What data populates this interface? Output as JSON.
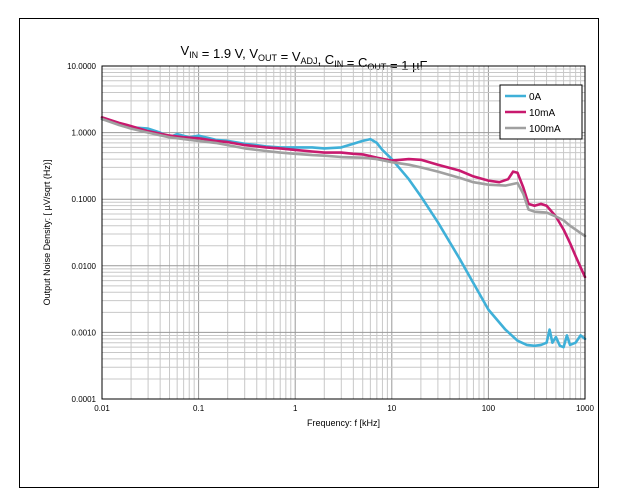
{
  "chart_data": {
    "type": "line",
    "title": "VIN = 1.9 V, VOUT = VADJ, CIN = COUT = 1 µF",
    "title_parts": [
      {
        "text": "V",
        "sub": "IN"
      },
      {
        "text": " = 1.9 V, V",
        "sub": "OUT"
      },
      {
        "text": " = V",
        "sub": "ADJ"
      },
      {
        "text": ", C",
        "sub": "IN"
      },
      {
        "text": " = C",
        "sub": "OUT"
      },
      {
        "text": " = 1 µF",
        "sub": ""
      }
    ],
    "xlabel": "Frequency: f [kHz]",
    "ylabel": "Output Noise Density: [ µV/sqrt (Hz)]",
    "x_scale": "log",
    "y_scale": "log",
    "xlim": [
      0.01,
      1000
    ],
    "ylim": [
      0.0001,
      10
    ],
    "x_ticks": [
      {
        "value": 0.01,
        "label": "0.01"
      },
      {
        "value": 0.1,
        "label": "0.1"
      },
      {
        "value": 1,
        "label": "1"
      },
      {
        "value": 10,
        "label": "10"
      },
      {
        "value": 100,
        "label": "100"
      },
      {
        "value": 1000,
        "label": "1000"
      }
    ],
    "y_ticks": [
      {
        "value": 0.0001,
        "label": "0.0001"
      },
      {
        "value": 0.001,
        "label": "0.0010"
      },
      {
        "value": 0.01,
        "label": "0.0100"
      },
      {
        "value": 0.1,
        "label": "0.1000"
      },
      {
        "value": 1,
        "label": "1.0000"
      },
      {
        "value": 10,
        "label": "10.0000"
      }
    ],
    "grid": true,
    "legend_position": "top-right",
    "series": [
      {
        "name": "0A",
        "color": "#3fb0d8",
        "points": [
          [
            0.01,
            1.6
          ],
          [
            0.015,
            1.35
          ],
          [
            0.02,
            1.2
          ],
          [
            0.03,
            1.15
          ],
          [
            0.04,
            1.0
          ],
          [
            0.05,
            0.85
          ],
          [
            0.06,
            0.95
          ],
          [
            0.08,
            0.85
          ],
          [
            0.1,
            0.9
          ],
          [
            0.15,
            0.78
          ],
          [
            0.2,
            0.75
          ],
          [
            0.3,
            0.68
          ],
          [
            0.4,
            0.65
          ],
          [
            0.5,
            0.62
          ],
          [
            0.7,
            0.6
          ],
          [
            1,
            0.6
          ],
          [
            1.5,
            0.6
          ],
          [
            2,
            0.58
          ],
          [
            3,
            0.6
          ],
          [
            4,
            0.68
          ],
          [
            5,
            0.75
          ],
          [
            6,
            0.8
          ],
          [
            7,
            0.7
          ],
          [
            8,
            0.55
          ],
          [
            10,
            0.4
          ],
          [
            15,
            0.2
          ],
          [
            20,
            0.11
          ],
          [
            30,
            0.045
          ],
          [
            50,
            0.013
          ],
          [
            70,
            0.0055
          ],
          [
            100,
            0.0022
          ],
          [
            150,
            0.0011
          ],
          [
            200,
            0.00075
          ],
          [
            250,
            0.00065
          ],
          [
            300,
            0.00063
          ],
          [
            350,
            0.00065
          ],
          [
            400,
            0.0007
          ],
          [
            430,
            0.0011
          ],
          [
            460,
            0.0007
          ],
          [
            500,
            0.00085
          ],
          [
            550,
            0.00063
          ],
          [
            600,
            0.0006
          ],
          [
            650,
            0.0009
          ],
          [
            700,
            0.00065
          ],
          [
            800,
            0.0007
          ],
          [
            900,
            0.0009
          ],
          [
            1000,
            0.0008
          ]
        ]
      },
      {
        "name": "10mA",
        "color": "#c8196e",
        "points": [
          [
            0.01,
            1.7
          ],
          [
            0.015,
            1.4
          ],
          [
            0.02,
            1.25
          ],
          [
            0.03,
            1.05
          ],
          [
            0.05,
            0.9
          ],
          [
            0.07,
            0.85
          ],
          [
            0.1,
            0.82
          ],
          [
            0.15,
            0.75
          ],
          [
            0.2,
            0.72
          ],
          [
            0.3,
            0.65
          ],
          [
            0.5,
            0.6
          ],
          [
            0.7,
            0.58
          ],
          [
            1,
            0.55
          ],
          [
            1.5,
            0.52
          ],
          [
            2,
            0.5
          ],
          [
            3,
            0.5
          ],
          [
            4,
            0.48
          ],
          [
            5,
            0.47
          ],
          [
            7,
            0.42
          ],
          [
            10,
            0.38
          ],
          [
            15,
            0.4
          ],
          [
            20,
            0.39
          ],
          [
            30,
            0.33
          ],
          [
            50,
            0.27
          ],
          [
            70,
            0.22
          ],
          [
            100,
            0.19
          ],
          [
            130,
            0.18
          ],
          [
            160,
            0.2
          ],
          [
            180,
            0.26
          ],
          [
            200,
            0.25
          ],
          [
            230,
            0.15
          ],
          [
            260,
            0.085
          ],
          [
            300,
            0.08
          ],
          [
            350,
            0.085
          ],
          [
            400,
            0.08
          ],
          [
            500,
            0.055
          ],
          [
            600,
            0.035
          ],
          [
            700,
            0.022
          ],
          [
            800,
            0.014
          ],
          [
            900,
            0.0095
          ],
          [
            1000,
            0.0068
          ]
        ]
      },
      {
        "name": "100mA",
        "color": "#a0a0a0",
        "points": [
          [
            0.01,
            1.6
          ],
          [
            0.015,
            1.3
          ],
          [
            0.02,
            1.15
          ],
          [
            0.03,
            1.0
          ],
          [
            0.05,
            0.85
          ],
          [
            0.07,
            0.8
          ],
          [
            0.1,
            0.75
          ],
          [
            0.15,
            0.7
          ],
          [
            0.2,
            0.65
          ],
          [
            0.3,
            0.58
          ],
          [
            0.5,
            0.53
          ],
          [
            0.7,
            0.5
          ],
          [
            1,
            0.48
          ],
          [
            1.5,
            0.46
          ],
          [
            2,
            0.45
          ],
          [
            3,
            0.43
          ],
          [
            5,
            0.42
          ],
          [
            7,
            0.4
          ],
          [
            10,
            0.36
          ],
          [
            15,
            0.33
          ],
          [
            20,
            0.3
          ],
          [
            30,
            0.26
          ],
          [
            50,
            0.21
          ],
          [
            70,
            0.18
          ],
          [
            100,
            0.165
          ],
          [
            150,
            0.16
          ],
          [
            200,
            0.175
          ],
          [
            230,
            0.12
          ],
          [
            260,
            0.07
          ],
          [
            300,
            0.065
          ],
          [
            400,
            0.063
          ],
          [
            500,
            0.055
          ],
          [
            600,
            0.048
          ],
          [
            700,
            0.04
          ],
          [
            800,
            0.035
          ],
          [
            900,
            0.031
          ],
          [
            1000,
            0.028
          ]
        ]
      }
    ]
  }
}
